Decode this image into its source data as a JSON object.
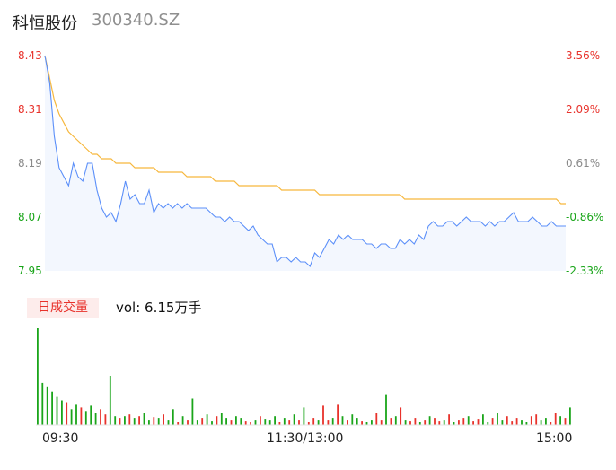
{
  "header": {
    "stock_name": "科恒股份",
    "stock_code": "300340.SZ"
  },
  "price_axis_left": [
    "8.43",
    "8.31",
    "8.19",
    "8.07",
    "7.95"
  ],
  "price_axis_right": [
    "3.56%",
    "2.09%",
    "0.61%",
    "-0.86%",
    "-2.33%"
  ],
  "volume_panel": {
    "badge_label": "日成交量",
    "volume_text": "vol: 6.15万手"
  },
  "time_axis": [
    "09:30",
    "11:30/13:00",
    "15:00"
  ],
  "colors": {
    "up": "#e8322b",
    "down": "#1aa51a",
    "price_line": "#5b8ff9",
    "avg_line": "#f6b73c"
  },
  "chart_data": {
    "type": "line",
    "ylim": [
      7.95,
      8.43
    ],
    "x_range": [
      "09:30",
      "15:00"
    ],
    "series": [
      {
        "values": [
          8.43,
          8.37,
          8.25,
          8.18,
          8.16,
          8.14,
          8.19,
          8.16,
          8.15,
          8.19,
          8.19,
          8.13,
          8.09,
          8.07,
          8.08,
          8.06,
          8.1,
          8.15,
          8.11,
          8.12,
          8.1,
          8.1,
          8.13,
          8.08,
          8.1,
          8.09,
          8.1,
          8.09,
          8.1,
          8.09,
          8.1,
          8.09,
          8.09,
          8.09,
          8.09,
          8.08,
          8.07,
          8.07,
          8.06,
          8.07,
          8.06,
          8.06,
          8.05,
          8.04,
          8.05,
          8.03,
          8.02,
          8.01,
          8.01,
          7.97,
          7.98,
          7.98,
          7.97,
          7.98,
          7.97,
          7.97,
          7.96,
          7.99,
          7.98,
          8.0,
          8.02,
          8.01,
          8.03,
          8.02,
          8.03,
          8.02,
          8.02,
          8.02,
          8.01,
          8.01,
          8.0,
          8.01,
          8.01,
          8.0,
          8.0,
          8.02,
          8.01,
          8.02,
          8.01,
          8.03,
          8.02,
          8.05,
          8.06,
          8.05,
          8.05,
          8.06,
          8.06,
          8.05,
          8.06,
          8.07,
          8.06,
          8.06,
          8.06,
          8.05,
          8.06,
          8.05,
          8.06,
          8.06,
          8.07,
          8.08,
          8.06,
          8.06,
          8.06,
          8.07,
          8.06,
          8.05,
          8.05,
          8.06,
          8.05,
          8.05,
          8.05
        ]
      },
      {
        "values": [
          8.43,
          8.38,
          8.33,
          8.3,
          8.28,
          8.26,
          8.25,
          8.24,
          8.23,
          8.22,
          8.21,
          8.21,
          8.2,
          8.2,
          8.2,
          8.19,
          8.19,
          8.19,
          8.19,
          8.18,
          8.18,
          8.18,
          8.18,
          8.18,
          8.17,
          8.17,
          8.17,
          8.17,
          8.17,
          8.17,
          8.16,
          8.16,
          8.16,
          8.16,
          8.16,
          8.16,
          8.15,
          8.15,
          8.15,
          8.15,
          8.15,
          8.14,
          8.14,
          8.14,
          8.14,
          8.14,
          8.14,
          8.14,
          8.14,
          8.14,
          8.13,
          8.13,
          8.13,
          8.13,
          8.13,
          8.13,
          8.13,
          8.13,
          8.12,
          8.12,
          8.12,
          8.12,
          8.12,
          8.12,
          8.12,
          8.12,
          8.12,
          8.12,
          8.12,
          8.12,
          8.12,
          8.12,
          8.12,
          8.12,
          8.12,
          8.12,
          8.11,
          8.11,
          8.11,
          8.11,
          8.11,
          8.11,
          8.11,
          8.11,
          8.11,
          8.11,
          8.11,
          8.11,
          8.11,
          8.11,
          8.11,
          8.11,
          8.11,
          8.11,
          8.11,
          8.11,
          8.11,
          8.11,
          8.11,
          8.11,
          8.11,
          8.11,
          8.11,
          8.11,
          8.11,
          8.11,
          8.11,
          8.11,
          8.11,
          8.1,
          8.1
        ]
      }
    ],
    "volume": [
      110,
      48,
      44,
      38,
      32,
      28,
      26,
      18,
      24,
      20,
      16,
      22,
      14,
      18,
      12,
      56,
      10,
      8,
      10,
      12,
      8,
      10,
      14,
      6,
      9,
      8,
      12,
      6,
      18,
      4,
      10,
      6,
      30,
      6,
      8,
      12,
      5,
      10,
      14,
      8,
      6,
      10,
      8,
      5,
      4,
      6,
      10,
      7,
      6,
      10,
      4,
      8,
      6,
      12,
      6,
      20,
      4,
      8,
      6,
      22,
      6,
      8,
      24,
      10,
      6,
      12,
      8,
      5,
      4,
      6,
      14,
      6,
      35,
      8,
      10,
      20,
      6,
      5,
      8,
      4,
      6,
      10,
      8,
      5,
      6,
      12,
      4,
      6,
      8,
      10,
      5,
      7,
      12,
      4,
      8,
      14,
      6,
      10,
      5,
      8,
      6,
      4,
      10,
      12,
      6,
      8,
      4,
      14,
      10,
      8,
      20
    ],
    "volume_up": [
      false,
      false,
      false,
      false,
      false,
      false,
      true,
      false,
      false,
      true,
      false,
      false,
      false,
      true,
      true,
      false,
      false,
      true,
      false,
      true,
      false,
      true,
      false,
      false,
      true,
      false,
      true,
      false,
      false,
      true,
      false,
      true,
      false,
      false,
      true,
      false,
      false,
      true,
      false,
      false,
      true,
      false,
      false,
      true,
      true,
      false,
      true,
      false,
      false,
      false,
      true,
      false,
      true,
      false,
      true,
      false,
      true,
      true,
      false,
      true,
      true,
      false,
      true,
      false,
      true,
      false,
      false,
      true,
      false,
      false,
      true,
      true,
      false,
      true,
      false,
      true,
      false,
      true,
      true,
      false,
      true,
      false,
      true,
      true,
      false,
      true,
      false,
      true,
      true,
      false,
      true,
      true,
      false,
      false,
      true,
      false,
      false,
      true,
      true,
      true,
      false,
      false,
      true,
      true,
      false,
      false,
      true,
      true,
      false,
      true,
      false
    ]
  }
}
